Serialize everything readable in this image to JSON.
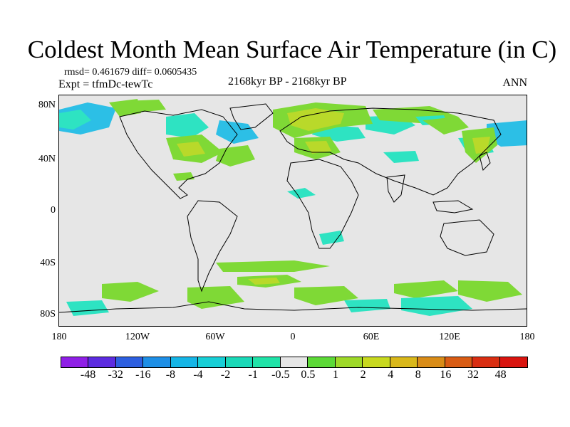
{
  "title": "Coldest Month Mean Surface Air Temperature (in C)",
  "stats": {
    "rmsd_diff": "rmsd= 0.461679  diff= 0.0605435",
    "expt": "Expt = tfmDc-tewTc",
    "period": "2168kyr BP - 2168kyr BP",
    "season": "ANN"
  },
  "axes": {
    "y_labels": [
      "80N",
      "40N",
      "0",
      "40S",
      "80S"
    ],
    "x_labels": [
      "180",
      "120W",
      "60W",
      "0",
      "60E",
      "120E",
      "180"
    ]
  },
  "colorbar": {
    "labels": [
      "-48",
      "-32",
      "-16",
      "-8",
      "-4",
      "-2",
      "-1",
      "-0.5",
      "0.5",
      "1",
      "2",
      "4",
      "8",
      "16",
      "32",
      "48"
    ],
    "colors": [
      "#8f1fe6",
      "#5c2be0",
      "#2d5fe0",
      "#1e8fe6",
      "#15b5e6",
      "#17cfd6",
      "#1ad9b8",
      "#20e3a8",
      "#e6e6e6",
      "#5cd937",
      "#9ed928",
      "#c8d91f",
      "#d9b81a",
      "#d98c17",
      "#d95c14",
      "#d92e12",
      "#d9140f"
    ]
  },
  "colors": {
    "background": "#e6e6e6",
    "warm_light": "#7fd936",
    "warm_medium": "#b9d92a",
    "cool_light": "#2ee3c2",
    "cool_medium": "#2cbfe6"
  }
}
